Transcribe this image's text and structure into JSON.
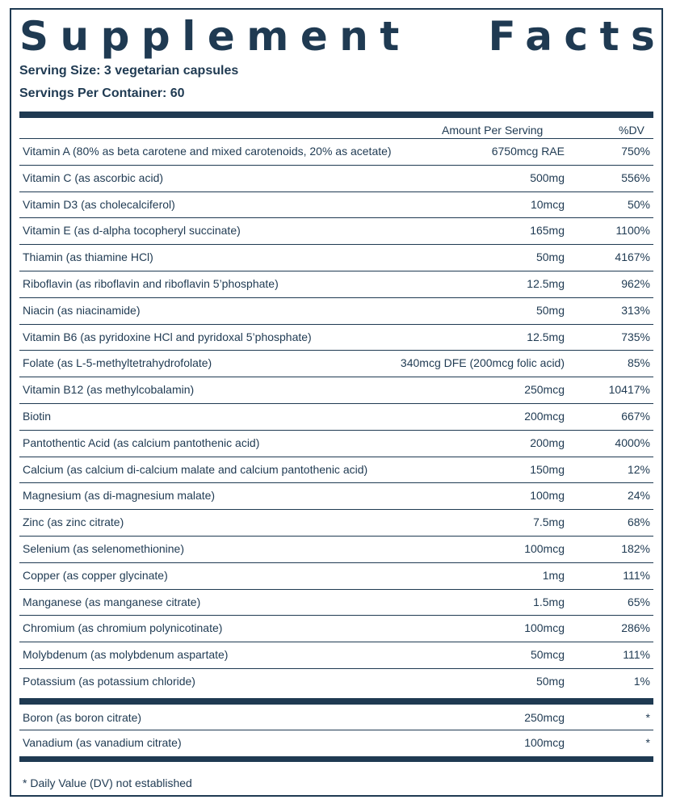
{
  "title": "Supplement   Facts",
  "serving_size": "Serving Size: 3 vegetarian capsules",
  "servings_per_container": "Servings Per Container: 60",
  "header": {
    "amount": "Amount Per Serving",
    "dv": "%DV"
  },
  "nutrients": [
    {
      "name": "Vitamin A (80% as beta carotene and mixed carotenoids, 20% as acetate)",
      "amount": "6750mcg RAE",
      "dv": "750%"
    },
    {
      "name": "Vitamin C (as ascorbic acid)",
      "amount": "500mg",
      "dv": "556%"
    },
    {
      "name": "Vitamin D3 (as cholecalciferol)",
      "amount": "10mcg",
      "dv": "50%"
    },
    {
      "name": "Vitamin E (as d-alpha tocopheryl succinate)",
      "amount": "165mg",
      "dv": "1100%"
    },
    {
      "name": "Thiamin (as thiamine HCl)",
      "amount": "50mg",
      "dv": "4167%"
    },
    {
      "name": "Riboflavin (as riboflavin and riboflavin 5’phosphate)",
      "amount": "12.5mg",
      "dv": "962%"
    },
    {
      "name": "Niacin (as niacinamide)",
      "amount": "50mg",
      "dv": "313%"
    },
    {
      "name": "Vitamin B6 (as pyridoxine HCl and pyridoxal 5’phosphate)",
      "amount": "12.5mg",
      "dv": "735%"
    },
    {
      "name": "Folate (as L-5-methyltetrahydrofolate)",
      "amount": "340mcg DFE (200mcg folic acid)",
      "dv": "85%"
    },
    {
      "name": "Vitamin B12 (as methylcobalamin)",
      "amount": "250mcg",
      "dv": "10417%"
    },
    {
      "name": "Biotin",
      "amount": "200mcg",
      "dv": "667%"
    },
    {
      "name": "Pantothentic Acid (as calcium pantothenic acid)",
      "amount": "200mg",
      "dv": "4000%"
    },
    {
      "name": "Calcium (as calcium di-calcium malate and calcium pantothenic acid)",
      "amount": "150mg",
      "dv": "12%"
    },
    {
      "name": "Magnesium (as di-magnesium malate)",
      "amount": "100mg",
      "dv": "24%"
    },
    {
      "name": "Zinc (as zinc citrate)",
      "amount": "7.5mg",
      "dv": "68%"
    },
    {
      "name": "Selenium (as selenomethionine)",
      "amount": "100mcg",
      "dv": "182%"
    },
    {
      "name": "Copper (as copper glycinate)",
      "amount": "1mg",
      "dv": "111%"
    },
    {
      "name": "Manganese (as manganese citrate)",
      "amount": "1.5mg",
      "dv": "65%"
    },
    {
      "name": "Chromium (as chromium polynicotinate)",
      "amount": "100mcg",
      "dv": "286%"
    },
    {
      "name": "Molybdenum (as molybdenum aspartate)",
      "amount": "50mcg",
      "dv": "111%"
    },
    {
      "name": "Potassium (as potassium chloride)",
      "amount": "50mg",
      "dv": "1%"
    }
  ],
  "other_ingredients": [
    {
      "name": "Boron (as boron citrate)",
      "amount": "250mcg",
      "dv": "*"
    },
    {
      "name": "Vanadium (as vanadium citrate)",
      "amount": "100mcg",
      "dv": "*"
    }
  ],
  "footnote": "* Daily Value (DV) not established",
  "colors": {
    "ink": "#1f3a52",
    "background": "#ffffff"
  }
}
